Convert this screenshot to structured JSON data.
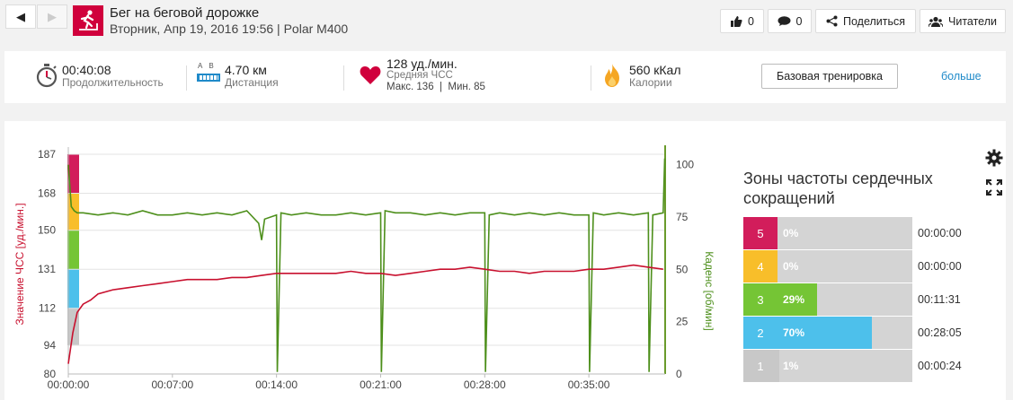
{
  "header": {
    "title": "Бег на беговой дорожке",
    "subtitle": "Вторник, Апр 19, 2016 19:56 | Polar M400",
    "like_count": "0",
    "comment_count": "0",
    "share_label": "Поделиться",
    "followers_label": "Читатели"
  },
  "summary": {
    "duration_value": "00:40:08",
    "duration_label": "Продолжительность",
    "distance_value": "4.70 км",
    "distance_label": "Дистанция",
    "distance_icon_text": "A  B",
    "hr_value": "128 уд./мин.",
    "hr_label": "Средняя ЧСС",
    "hr_minmax": "Макс. 136  |  Мин. 85",
    "calories_value": "560 кКал",
    "calories_label": "Калории",
    "training_button": "Базовая тренировка",
    "more_link": "больше",
    "colors": {
      "heart": "#d0003c",
      "flame": "#f5a623",
      "link": "#1f8ac9"
    }
  },
  "chart_data": {
    "type": "line",
    "left_axis": {
      "label": "Значение ЧСС [уд./мин.]",
      "ticks": [
        187,
        168,
        150,
        131,
        112,
        94,
        80
      ],
      "range": [
        80,
        187
      ]
    },
    "right_axis": {
      "label": "Каденс [об/мин]",
      "ticks": [
        100,
        75,
        50,
        25,
        0
      ],
      "range": [
        0,
        105
      ]
    },
    "x_ticks": [
      "00:00:00",
      "00:07:00",
      "00:14:00",
      "00:21:00",
      "00:28:00",
      "00:35:00"
    ],
    "x_range_min": [
      0,
      40.13
    ],
    "hr_zone_band_colors": [
      "#d21d5b",
      "#f8be2a",
      "#75c535",
      "#4dc0eb",
      "#c8c8c8"
    ],
    "series": [
      {
        "color": "#c8102e",
        "x": [
          0,
          0.3,
          0.6,
          1,
          1.5,
          2,
          3,
          4,
          5,
          6,
          7,
          8,
          9,
          10,
          11,
          12,
          13,
          14,
          15,
          16,
          17,
          18,
          19,
          20,
          21,
          22,
          23,
          24,
          25,
          26,
          27,
          28,
          29,
          30,
          31,
          32,
          33,
          34,
          35,
          36,
          37,
          38,
          39,
          40
        ],
        "values": [
          85,
          100,
          110,
          114,
          116,
          119,
          121,
          122,
          123,
          124,
          125,
          126,
          126,
          126,
          127,
          127,
          128,
          129,
          129,
          129,
          129,
          129,
          130,
          129,
          129,
          128,
          129,
          130,
          131,
          131,
          132,
          131,
          130,
          130,
          129,
          130,
          130,
          130,
          131,
          131,
          132,
          133,
          132,
          131
        ]
      },
      {
        "color": "#4d8f1b",
        "x": [
          0,
          0.2,
          0.4,
          0.6,
          1,
          2,
          3,
          4,
          5,
          6,
          7,
          8,
          9,
          10,
          11,
          12,
          12.8,
          13,
          13.2,
          14,
          14.05,
          14.3,
          15,
          16,
          17,
          18,
          19,
          20,
          21,
          21.05,
          21.3,
          22,
          23,
          24,
          25,
          26,
          27,
          28,
          28.05,
          28.3,
          29,
          30,
          31,
          32,
          33,
          34,
          35,
          35.05,
          35.3,
          36,
          37,
          38,
          39,
          39.05,
          39.3,
          40,
          40.1
        ],
        "values": [
          100,
          80,
          78,
          77,
          77,
          76,
          77,
          76,
          78,
          76,
          76,
          77,
          76,
          77,
          76,
          78,
          72,
          64,
          74,
          76,
          1,
          77,
          76,
          77,
          76,
          76,
          77,
          76,
          77,
          1,
          78,
          77,
          77,
          76,
          77,
          76,
          77,
          77,
          1,
          76,
          77,
          76,
          77,
          76,
          77,
          76,
          76,
          1,
          77,
          76,
          77,
          76,
          77,
          1,
          76,
          77,
          103
        ]
      }
    ]
  },
  "zones": {
    "title": "Зоны частоты сердечных сокращений",
    "items": [
      {
        "num": "5",
        "pct": "0%",
        "fraction": 0.0,
        "time": "00:00:00",
        "color": "#d21d5b"
      },
      {
        "num": "4",
        "pct": "0%",
        "fraction": 0.0,
        "time": "00:00:00",
        "color": "#f8be2a"
      },
      {
        "num": "3",
        "pct": "29%",
        "fraction": 0.29,
        "time": "00:11:31",
        "color": "#75c535"
      },
      {
        "num": "2",
        "pct": "70%",
        "fraction": 0.7,
        "time": "00:28:05",
        "color": "#4dc0eb"
      },
      {
        "num": "1",
        "pct": "1%",
        "fraction": 0.01,
        "time": "00:00:24",
        "color": "#c8c8c8"
      }
    ]
  }
}
